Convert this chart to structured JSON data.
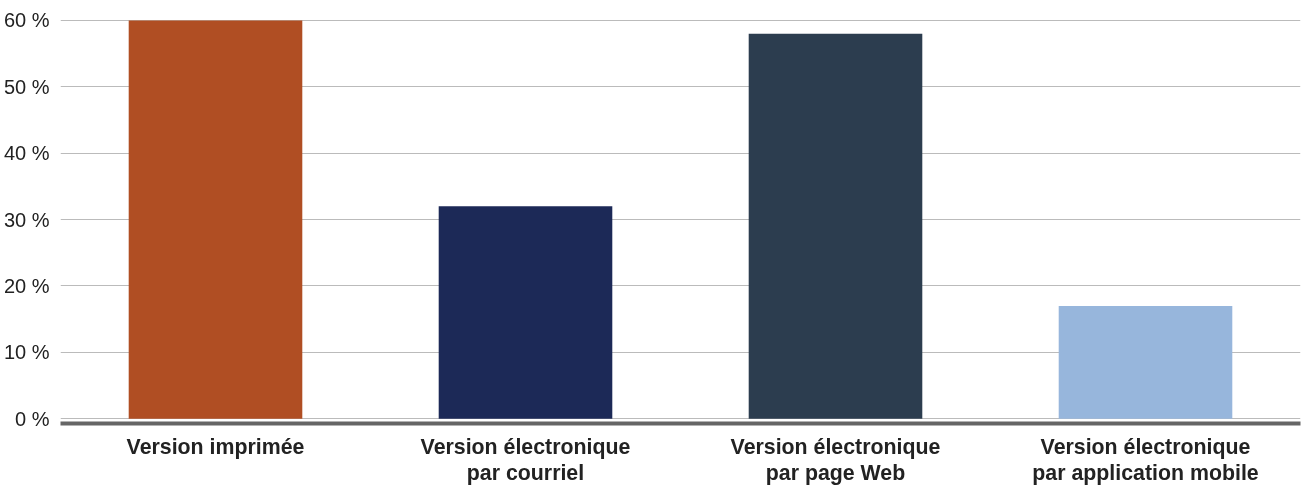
{
  "chart_data": {
    "type": "bar",
    "categories": [
      "Version imprimée",
      "Version électronique\npar courriel",
      "Version électronique\npar page Web",
      "Version électronique\npar application mobile"
    ],
    "values": [
      60,
      32,
      58,
      17
    ],
    "colors": [
      "#b04e23",
      "#1c2957",
      "#2c3d4f",
      "#97b6dc"
    ],
    "ylim": [
      0,
      60
    ],
    "yticks": [
      {
        "value": 0,
        "label": "0 %"
      },
      {
        "value": 10,
        "label": "10 %"
      },
      {
        "value": 20,
        "label": "20 %"
      },
      {
        "value": 30,
        "label": "30 %"
      },
      {
        "value": 40,
        "label": "40 %"
      },
      {
        "value": 50,
        "label": "50 %"
      },
      {
        "value": 60,
        "label": "60 %"
      }
    ],
    "grid": "y"
  }
}
